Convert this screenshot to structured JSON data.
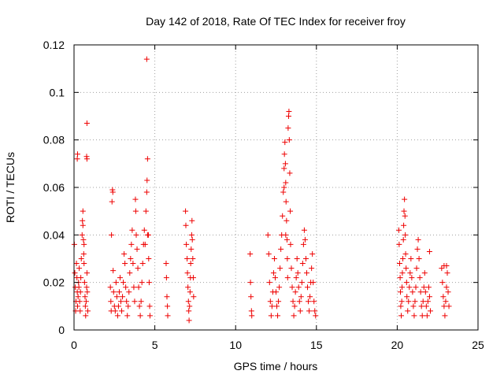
{
  "chart_data": {
    "type": "scatter",
    "title": "Day 142 of 2018, Rate Of TEC Index for receiver froy",
    "xlabel": "GPS time / hours",
    "ylabel": "ROTI / TECUs",
    "xlim": [
      0,
      25
    ],
    "ylim": [
      0,
      0.12
    ],
    "xticks": [
      0,
      5,
      10,
      15,
      20,
      25
    ],
    "xtick_labels": [
      "0",
      "5",
      "10",
      "15",
      "20",
      "25"
    ],
    "yticks": [
      0,
      0.02,
      0.04,
      0.06,
      0.08,
      0.1,
      0.12
    ],
    "ytick_labels": [
      "0",
      "0.02",
      "0.04",
      "0.06",
      "0.08",
      "0.1",
      "0.12"
    ],
    "grid": true,
    "marker": "+",
    "color": "#ee0000",
    "series": [
      {
        "name": "ROTI",
        "points": [
          [
            0.02,
            0.036
          ],
          [
            0.05,
            0.024
          ],
          [
            0.08,
            0.018
          ],
          [
            0.1,
            0.008
          ],
          [
            0.12,
            0.012
          ],
          [
            0.15,
            0.028
          ],
          [
            0.18,
            0.022
          ],
          [
            0.2,
            0.016
          ],
          [
            0.22,
            0.01
          ],
          [
            0.25,
            0.014
          ],
          [
            0.28,
            0.02
          ],
          [
            0.3,
            0.018
          ],
          [
            0.32,
            0.026
          ],
          [
            0.2,
            0.072
          ],
          [
            0.22,
            0.074
          ],
          [
            0.35,
            0.012
          ],
          [
            0.38,
            0.008
          ],
          [
            0.4,
            0.016
          ],
          [
            0.42,
            0.022
          ],
          [
            0.45,
            0.03
          ],
          [
            0.5,
            0.04
          ],
          [
            0.52,
            0.046
          ],
          [
            0.55,
            0.05
          ],
          [
            0.58,
            0.038
          ],
          [
            0.6,
            0.032
          ],
          [
            0.62,
            0.028
          ],
          [
            0.65,
            0.02
          ],
          [
            0.68,
            0.014
          ],
          [
            0.7,
            0.01
          ],
          [
            0.72,
            0.006
          ],
          [
            0.75,
            0.012
          ],
          [
            0.78,
            0.018
          ],
          [
            0.8,
            0.024
          ],
          [
            0.82,
            0.016
          ],
          [
            0.85,
            0.008
          ],
          [
            0.8,
            0.087
          ],
          [
            0.78,
            0.073
          ],
          [
            0.8,
            0.072
          ],
          [
            0.55,
            0.044
          ],
          [
            0.62,
            0.036
          ],
          [
            2.25,
            0.018
          ],
          [
            2.28,
            0.012
          ],
          [
            2.3,
            0.008
          ],
          [
            2.32,
            0.04
          ],
          [
            2.35,
            0.054
          ],
          [
            2.38,
            0.059
          ],
          [
            2.4,
            0.058
          ],
          [
            2.42,
            0.025
          ],
          [
            2.45,
            0.016
          ],
          [
            2.5,
            0.01
          ],
          [
            2.55,
            0.008
          ],
          [
            2.6,
            0.02
          ],
          [
            2.65,
            0.014
          ],
          [
            2.7,
            0.006
          ],
          [
            2.75,
            0.01
          ],
          [
            2.8,
            0.016
          ],
          [
            2.85,
            0.022
          ],
          [
            2.9,
            0.012
          ],
          [
            2.95,
            0.008
          ],
          [
            3.0,
            0.014
          ],
          [
            3.05,
            0.02
          ],
          [
            3.1,
            0.032
          ],
          [
            3.15,
            0.028
          ],
          [
            3.2,
            0.018
          ],
          [
            3.25,
            0.012
          ],
          [
            3.3,
            0.006
          ],
          [
            3.35,
            0.01
          ],
          [
            3.4,
            0.016
          ],
          [
            3.45,
            0.024
          ],
          [
            3.5,
            0.03
          ],
          [
            3.55,
            0.036
          ],
          [
            3.6,
            0.042
          ],
          [
            3.65,
            0.028
          ],
          [
            3.7,
            0.018
          ],
          [
            3.75,
            0.012
          ],
          [
            3.8,
            0.055
          ],
          [
            3.82,
            0.05
          ],
          [
            3.85,
            0.04
          ],
          [
            3.9,
            0.034
          ],
          [
            3.95,
            0.026
          ],
          [
            4.0,
            0.018
          ],
          [
            4.05,
            0.01
          ],
          [
            4.1,
            0.006
          ],
          [
            4.15,
            0.012
          ],
          [
            4.2,
            0.02
          ],
          [
            4.25,
            0.028
          ],
          [
            4.3,
            0.036
          ],
          [
            4.35,
            0.042
          ],
          [
            4.4,
            0.036
          ],
          [
            4.45,
            0.05
          ],
          [
            4.5,
            0.058
          ],
          [
            4.52,
            0.063
          ],
          [
            4.55,
            0.072
          ],
          [
            4.5,
            0.114
          ],
          [
            4.6,
            0.04
          ],
          [
            4.62,
            0.03
          ],
          [
            4.65,
            0.02
          ],
          [
            4.68,
            0.01
          ],
          [
            4.7,
            0.006
          ],
          [
            4.55,
            0.04
          ],
          [
            5.7,
            0.028
          ],
          [
            5.72,
            0.022
          ],
          [
            5.75,
            0.014
          ],
          [
            5.78,
            0.01
          ],
          [
            5.8,
            0.006
          ],
          [
            6.9,
            0.05
          ],
          [
            6.92,
            0.044
          ],
          [
            6.95,
            0.036
          ],
          [
            7.0,
            0.03
          ],
          [
            7.02,
            0.024
          ],
          [
            7.05,
            0.018
          ],
          [
            7.08,
            0.012
          ],
          [
            7.1,
            0.008
          ],
          [
            7.12,
            0.004
          ],
          [
            7.15,
            0.01
          ],
          [
            7.18,
            0.016
          ],
          [
            7.2,
            0.022
          ],
          [
            7.22,
            0.028
          ],
          [
            7.25,
            0.034
          ],
          [
            7.28,
            0.04
          ],
          [
            7.3,
            0.046
          ],
          [
            7.32,
            0.038
          ],
          [
            7.35,
            0.03
          ],
          [
            7.38,
            0.022
          ],
          [
            7.4,
            0.014
          ],
          [
            10.9,
            0.032
          ],
          [
            10.92,
            0.02
          ],
          [
            10.95,
            0.014
          ],
          [
            10.98,
            0.008
          ],
          [
            11.0,
            0.006
          ],
          [
            12.0,
            0.04
          ],
          [
            12.05,
            0.032
          ],
          [
            12.1,
            0.02
          ],
          [
            12.15,
            0.012
          ],
          [
            12.2,
            0.006
          ],
          [
            12.25,
            0.01
          ],
          [
            12.3,
            0.016
          ],
          [
            12.35,
            0.024
          ],
          [
            12.4,
            0.03
          ],
          [
            12.45,
            0.022
          ],
          [
            12.5,
            0.016
          ],
          [
            12.55,
            0.01
          ],
          [
            12.6,
            0.006
          ],
          [
            12.65,
            0.012
          ],
          [
            12.7,
            0.018
          ],
          [
            12.75,
            0.026
          ],
          [
            12.8,
            0.034
          ],
          [
            12.85,
            0.04
          ],
          [
            12.9,
            0.048
          ],
          [
            12.95,
            0.058
          ],
          [
            13.0,
            0.068
          ],
          [
            13.02,
            0.074
          ],
          [
            13.05,
            0.079
          ],
          [
            13.08,
            0.07
          ],
          [
            13.1,
            0.062
          ],
          [
            13.12,
            0.054
          ],
          [
            13.15,
            0.046
          ],
          [
            13.18,
            0.038
          ],
          [
            13.2,
            0.03
          ],
          [
            13.22,
            0.022
          ],
          [
            13.25,
            0.085
          ],
          [
            13.28,
            0.09
          ],
          [
            13.3,
            0.092
          ],
          [
            13.32,
            0.08
          ],
          [
            13.35,
            0.066
          ],
          [
            13.38,
            0.05
          ],
          [
            13.4,
            0.036
          ],
          [
            13.45,
            0.026
          ],
          [
            13.5,
            0.018
          ],
          [
            13.55,
            0.012
          ],
          [
            13.6,
            0.006
          ],
          [
            13.65,
            0.01
          ],
          [
            13.7,
            0.016
          ],
          [
            13.75,
            0.022
          ],
          [
            13.8,
            0.03
          ],
          [
            13.85,
            0.024
          ],
          [
            13.9,
            0.018
          ],
          [
            13.95,
            0.012
          ],
          [
            14.0,
            0.008
          ],
          [
            14.05,
            0.014
          ],
          [
            14.1,
            0.02
          ],
          [
            14.15,
            0.028
          ],
          [
            14.2,
            0.036
          ],
          [
            14.25,
            0.042
          ],
          [
            14.3,
            0.038
          ],
          [
            14.35,
            0.03
          ],
          [
            14.4,
            0.024
          ],
          [
            14.45,
            0.018
          ],
          [
            14.5,
            0.012
          ],
          [
            14.55,
            0.008
          ],
          [
            14.6,
            0.014
          ],
          [
            14.65,
            0.02
          ],
          [
            14.7,
            0.026
          ],
          [
            14.75,
            0.032
          ],
          [
            14.8,
            0.02
          ],
          [
            14.85,
            0.012
          ],
          [
            14.9,
            0.008
          ],
          [
            14.95,
            0.006
          ],
          [
            13.0,
            0.06
          ],
          [
            13.1,
            0.04
          ],
          [
            20.1,
            0.042
          ],
          [
            20.12,
            0.036
          ],
          [
            20.15,
            0.028
          ],
          [
            20.18,
            0.022
          ],
          [
            20.2,
            0.016
          ],
          [
            20.22,
            0.01
          ],
          [
            20.25,
            0.006
          ],
          [
            20.28,
            0.012
          ],
          [
            20.3,
            0.018
          ],
          [
            20.32,
            0.024
          ],
          [
            20.35,
            0.03
          ],
          [
            20.38,
            0.038
          ],
          [
            20.4,
            0.044
          ],
          [
            20.42,
            0.05
          ],
          [
            20.45,
            0.055
          ],
          [
            20.48,
            0.048
          ],
          [
            20.5,
            0.04
          ],
          [
            20.52,
            0.032
          ],
          [
            20.55,
            0.026
          ],
          [
            20.58,
            0.02
          ],
          [
            20.6,
            0.014
          ],
          [
            20.65,
            0.008
          ],
          [
            20.7,
            0.012
          ],
          [
            20.75,
            0.018
          ],
          [
            20.8,
            0.024
          ],
          [
            20.85,
            0.03
          ],
          [
            20.9,
            0.022
          ],
          [
            20.95,
            0.016
          ],
          [
            21.0,
            0.01
          ],
          [
            21.05,
            0.006
          ],
          [
            21.1,
            0.012
          ],
          [
            21.15,
            0.018
          ],
          [
            21.2,
            0.026
          ],
          [
            21.25,
            0.034
          ],
          [
            21.3,
            0.038
          ],
          [
            21.35,
            0.03
          ],
          [
            21.4,
            0.022
          ],
          [
            21.45,
            0.016
          ],
          [
            21.5,
            0.01
          ],
          [
            21.55,
            0.006
          ],
          [
            21.6,
            0.012
          ],
          [
            21.65,
            0.018
          ],
          [
            21.7,
            0.024
          ],
          [
            21.75,
            0.016
          ],
          [
            21.8,
            0.01
          ],
          [
            21.85,
            0.006
          ],
          [
            21.9,
            0.012
          ],
          [
            21.95,
            0.018
          ],
          [
            22.0,
            0.014
          ],
          [
            22.05,
            0.008
          ],
          [
            22.0,
            0.033
          ],
          [
            22.75,
            0.026
          ],
          [
            22.8,
            0.02
          ],
          [
            22.85,
            0.014
          ],
          [
            22.9,
            0.01
          ],
          [
            22.95,
            0.006
          ],
          [
            23.0,
            0.012
          ],
          [
            23.05,
            0.018
          ],
          [
            23.1,
            0.024
          ],
          [
            23.15,
            0.016
          ],
          [
            23.2,
            0.01
          ],
          [
            22.9,
            0.027
          ],
          [
            23.05,
            0.027
          ]
        ]
      }
    ]
  }
}
